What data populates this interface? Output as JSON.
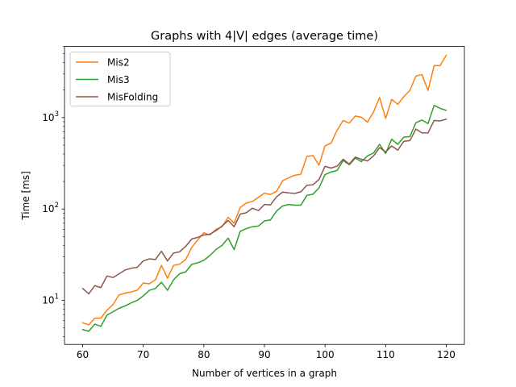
{
  "chart_data": {
    "type": "line",
    "title": "Graphs with 4|V| edges (average time)",
    "xlabel": "Number of vertices in a graph",
    "ylabel": "Time [ms]",
    "xlim": [
      57,
      123
    ],
    "ylim": [
      3.3,
      6000
    ],
    "yscale": "log",
    "xticks": [
      60,
      70,
      80,
      90,
      100,
      110,
      120
    ],
    "yticks": [
      {
        "value": 10,
        "base": "10",
        "exp": "1"
      },
      {
        "value": 100,
        "base": "10",
        "exp": "2"
      },
      {
        "value": 1000,
        "base": "10",
        "exp": "3"
      }
    ],
    "legend_position": "upper left",
    "grid": false,
    "x": [
      60,
      61,
      62,
      63,
      64,
      65,
      66,
      67,
      68,
      69,
      70,
      71,
      72,
      73,
      74,
      75,
      76,
      77,
      78,
      79,
      80,
      81,
      82,
      83,
      84,
      85,
      86,
      87,
      88,
      89,
      90,
      91,
      92,
      93,
      94,
      95,
      96,
      97,
      98,
      99,
      100,
      101,
      102,
      103,
      104,
      105,
      106,
      107,
      108,
      109,
      110,
      111,
      112,
      113,
      114,
      115,
      116,
      117,
      118,
      119,
      120
    ],
    "series": [
      {
        "name": "Mis2",
        "color": "#ff7f0e",
        "values": [
          5.7,
          5.4,
          6.4,
          6.4,
          7.8,
          9.0,
          11.5,
          12.0,
          12.4,
          12.9,
          15.5,
          15.2,
          16.8,
          24.2,
          17.5,
          24.2,
          24.9,
          28.0,
          38.0,
          46.0,
          55.0,
          52.0,
          60.0,
          64.0,
          81.0,
          70.0,
          104.0,
          116.0,
          121.0,
          134.0,
          149.0,
          144.0,
          156.0,
          204.0,
          219.0,
          234.0,
          240.0,
          375.0,
          385.0,
          301.0,
          490.0,
          525.0,
          730.0,
          930.0,
          870.0,
          1040.0,
          1010.0,
          890.0,
          1150.0,
          1660.0,
          980.0,
          1580.0,
          1400.0,
          1690.0,
          1980.0,
          2850.0,
          2950.0,
          1980.0,
          3700.0,
          3700.0,
          4800.0
        ]
      },
      {
        "name": "Mis3",
        "color": "#2ca02c",
        "values": [
          4.8,
          4.6,
          5.5,
          5.2,
          6.9,
          7.5,
          8.2,
          8.7,
          9.4,
          10.0,
          11.2,
          12.9,
          13.5,
          15.8,
          12.9,
          16.8,
          19.6,
          20.5,
          24.8,
          25.8,
          27.5,
          31.0,
          36.0,
          40.0,
          48.0,
          36.0,
          57.0,
          61.0,
          64.0,
          65.0,
          74.0,
          76.0,
          95.0,
          108.0,
          112.0,
          110.0,
          110.0,
          141.0,
          145.0,
          170.0,
          238.0,
          254.0,
          264.0,
          340.0,
          305.0,
          360.0,
          330.0,
          380.0,
          410.0,
          510.0,
          405.0,
          580.0,
          510.0,
          610.0,
          620.0,
          880.0,
          940.0,
          860.0,
          1360.0,
          1260.0,
          1200.0
        ]
      },
      {
        "name": "MisFolding",
        "color": "#8c564b",
        "values": [
          13.5,
          11.8,
          14.5,
          13.8,
          18.5,
          17.8,
          19.5,
          21.5,
          22.5,
          23.0,
          27.0,
          28.5,
          28.0,
          34.5,
          27.0,
          33.0,
          34.0,
          39.0,
          47.0,
          49.0,
          52.0,
          53.0,
          58.0,
          65.0,
          75.0,
          64.0,
          88.0,
          91.0,
          102.0,
          96.0,
          112.0,
          111.0,
          136.0,
          153.0,
          150.0,
          148.0,
          154.0,
          182.0,
          184.0,
          210.0,
          293.0,
          280.0,
          295.0,
          350.0,
          310.0,
          370.0,
          350.0,
          335.0,
          380.0,
          470.0,
          420.0,
          490.0,
          440.0,
          550.0,
          560.0,
          750.0,
          680.0,
          680.0,
          930.0,
          920.0,
          960.0
        ]
      }
    ]
  }
}
